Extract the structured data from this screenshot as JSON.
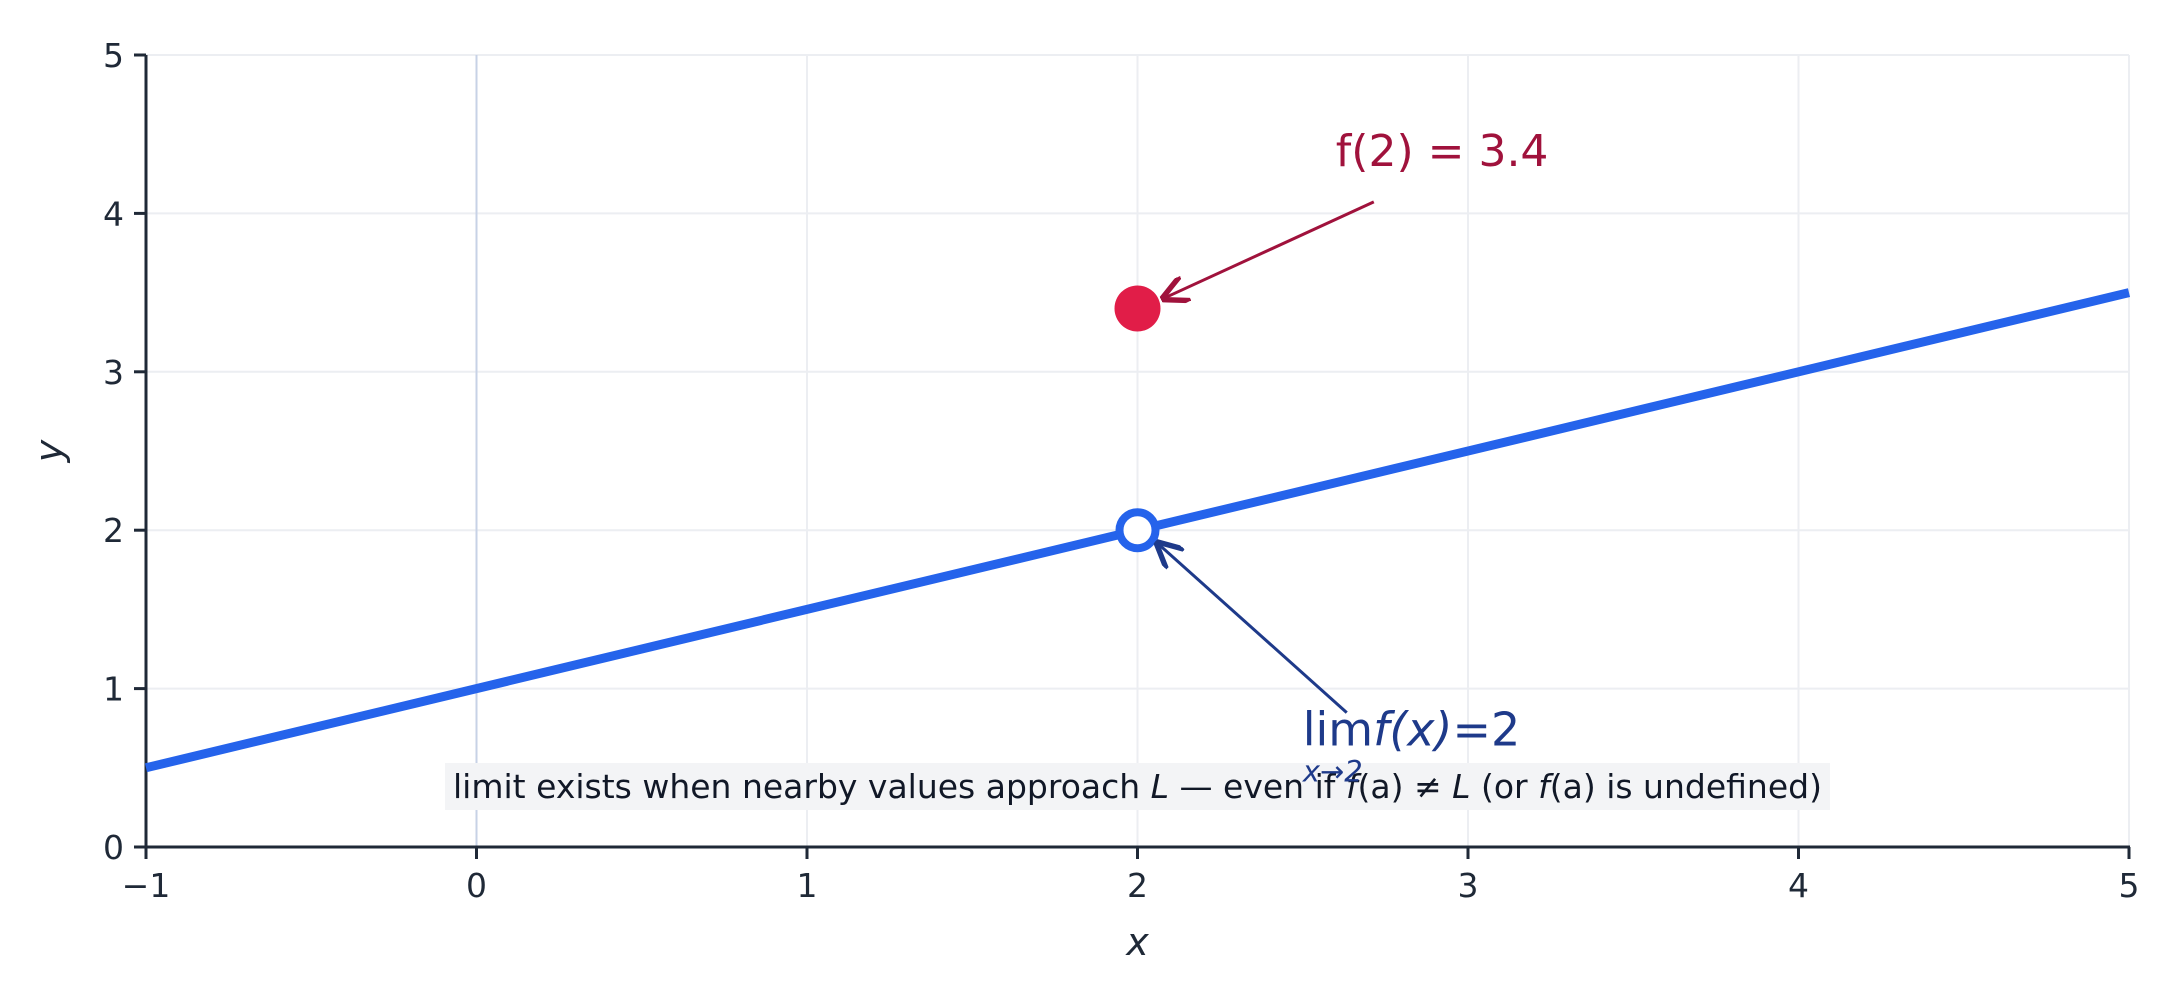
{
  "chart_data": {
    "type": "line",
    "xlabel": "x",
    "ylabel": "y",
    "xlim": [
      -1,
      5
    ],
    "ylim": [
      0,
      5
    ],
    "x_ticks": [
      -1,
      0,
      1,
      2,
      3,
      4,
      5
    ],
    "y_ticks": [
      0,
      1,
      2,
      3,
      4,
      5
    ],
    "x_tick_labels": [
      "−1",
      "0",
      "1",
      "2",
      "3",
      "4",
      "5"
    ],
    "y_tick_labels": [
      "0",
      "1",
      "2",
      "3",
      "4",
      "5"
    ],
    "grid": true,
    "series": [
      {
        "x": [
          -1,
          2,
          5
        ],
        "y": [
          0.5,
          2,
          3.5
        ],
        "color": "#2563eb"
      }
    ],
    "hole_point": {
      "x": 2,
      "y": 2
    },
    "filled_point": {
      "x": 2,
      "y": 3.4,
      "color": "#e11d48"
    },
    "annotations": {
      "value": {
        "label": "f(2) = 3.4",
        "text_x": 2.6,
        "text_y": 4.3,
        "color": "#a0123c"
      },
      "limit": {
        "lim": "lim",
        "func": "f(x)",
        "eq": "=2",
        "sub": "x→2",
        "text_x": 2.5,
        "text_y": 0.64,
        "color": "#1e3a8a"
      }
    },
    "note": {
      "pre": "limit exists when nearby values approach ",
      "L1": "L",
      "mid": " — even if ",
      "fa1": "f",
      "a1": "(a)",
      "neq": " ≠ ",
      "L2": "L",
      "post1": " (or ",
      "fa2": "f",
      "a2": "(a)",
      "post2": " is undefined)"
    }
  }
}
